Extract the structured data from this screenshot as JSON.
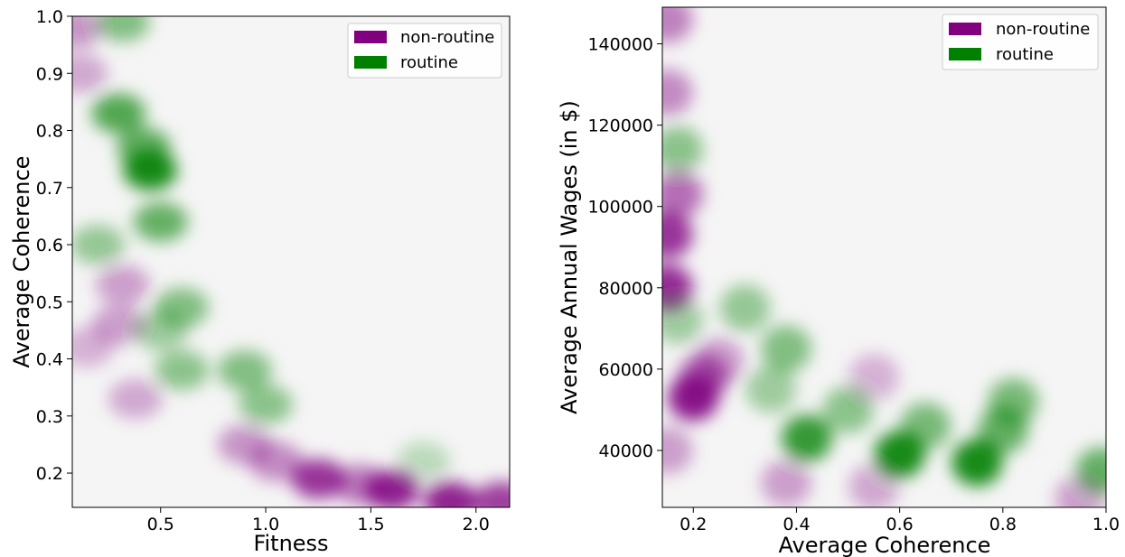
{
  "colors": {
    "background": "#f5f5f5",
    "non_routine": "#800080",
    "routine": "#008000"
  },
  "chart_data": [
    {
      "type": "heatmap",
      "subtype": "kde-density",
      "title": "",
      "xlabel": "Fitness",
      "ylabel": "Average Coherence",
      "xlim": [
        0.08,
        2.16
      ],
      "ylim": [
        0.14,
        1.0
      ],
      "xticks": [
        0.5,
        1.0,
        1.5,
        2.0
      ],
      "xtick_labels": [
        "0.5",
        "1.0",
        "1.5",
        "2.0"
      ],
      "yticks": [
        0.2,
        0.3,
        0.4,
        0.5,
        0.6,
        0.7,
        0.8,
        0.9,
        1.0
      ],
      "ytick_labels": [
        "0.2",
        "0.3",
        "0.4",
        "0.5",
        "0.6",
        "0.7",
        "0.8",
        "0.9",
        "1.0"
      ],
      "grid": false,
      "legend_position": "top-right",
      "legend": [
        {
          "label": "non-routine",
          "color": "#800080"
        },
        {
          "label": "routine",
          "color": "#008000"
        }
      ],
      "series": [
        {
          "name": "non-routine",
          "color": "#800080",
          "peaks": [
            {
              "x": 0.1,
              "y": 0.98,
              "density": 0.35
            },
            {
              "x": 0.12,
              "y": 0.9,
              "density": 0.25
            },
            {
              "x": 0.32,
              "y": 0.53,
              "density": 0.3
            },
            {
              "x": 0.3,
              "y": 0.46,
              "density": 0.3
            },
            {
              "x": 0.15,
              "y": 0.42,
              "density": 0.2
            },
            {
              "x": 0.38,
              "y": 0.33,
              "density": 0.25
            },
            {
              "x": 0.9,
              "y": 0.25,
              "density": 0.35
            },
            {
              "x": 1.05,
              "y": 0.22,
              "density": 0.4
            },
            {
              "x": 1.25,
              "y": 0.19,
              "density": 0.85
            },
            {
              "x": 1.45,
              "y": 0.18,
              "density": 0.5
            },
            {
              "x": 1.6,
              "y": 0.17,
              "density": 0.95
            },
            {
              "x": 1.88,
              "y": 0.15,
              "density": 0.95
            },
            {
              "x": 2.12,
              "y": 0.15,
              "density": 0.8
            }
          ]
        },
        {
          "name": "routine",
          "color": "#008000",
          "peaks": [
            {
              "x": 0.32,
              "y": 0.99,
              "density": 0.45
            },
            {
              "x": 0.3,
              "y": 0.83,
              "density": 0.7
            },
            {
              "x": 0.42,
              "y": 0.77,
              "density": 0.65
            },
            {
              "x": 0.45,
              "y": 0.73,
              "density": 1.0
            },
            {
              "x": 0.5,
              "y": 0.64,
              "density": 0.6
            },
            {
              "x": 0.2,
              "y": 0.6,
              "density": 0.35
            },
            {
              "x": 0.6,
              "y": 0.49,
              "density": 0.45
            },
            {
              "x": 0.5,
              "y": 0.45,
              "density": 0.3
            },
            {
              "x": 0.6,
              "y": 0.38,
              "density": 0.4
            },
            {
              "x": 0.9,
              "y": 0.38,
              "density": 0.45
            },
            {
              "x": 1.0,
              "y": 0.32,
              "density": 0.4
            },
            {
              "x": 1.75,
              "y": 0.22,
              "density": 0.15
            }
          ]
        }
      ]
    },
    {
      "type": "heatmap",
      "subtype": "kde-density",
      "title": "",
      "xlabel": "Average Coherence",
      "ylabel": "Average Annual Wages (in $)",
      "xlim": [
        0.14,
        1.0
      ],
      "ylim": [
        26000,
        149000
      ],
      "xticks": [
        0.2,
        0.4,
        0.6,
        0.8,
        1.0
      ],
      "xtick_labels": [
        "0.2",
        "0.4",
        "0.6",
        "0.8",
        "1.0"
      ],
      "yticks": [
        40000,
        60000,
        80000,
        100000,
        120000,
        140000
      ],
      "ytick_labels": [
        "40000",
        "60000",
        "80000",
        "100000",
        "120000",
        "140000"
      ],
      "grid": false,
      "legend_position": "top-right",
      "legend": [
        {
          "label": "non-routine",
          "color": "#800080"
        },
        {
          "label": "routine",
          "color": "#008000"
        }
      ],
      "series": [
        {
          "name": "non-routine",
          "color": "#800080",
          "peaks": [
            {
              "x": 0.15,
              "y": 146000,
              "density": 0.45
            },
            {
              "x": 0.15,
              "y": 128000,
              "density": 0.4
            },
            {
              "x": 0.17,
              "y": 103000,
              "density": 0.55
            },
            {
              "x": 0.15,
              "y": 93000,
              "density": 0.85
            },
            {
              "x": 0.15,
              "y": 80000,
              "density": 0.9
            },
            {
              "x": 0.2,
              "y": 53000,
              "density": 1.0
            },
            {
              "x": 0.22,
              "y": 58000,
              "density": 0.6
            },
            {
              "x": 0.25,
              "y": 62000,
              "density": 0.3
            },
            {
              "x": 0.15,
              "y": 40000,
              "density": 0.3
            },
            {
              "x": 0.38,
              "y": 32000,
              "density": 0.3
            },
            {
              "x": 0.55,
              "y": 58000,
              "density": 0.2
            },
            {
              "x": 0.55,
              "y": 31000,
              "density": 0.25
            },
            {
              "x": 0.95,
              "y": 28000,
              "density": 0.3
            }
          ]
        },
        {
          "name": "routine",
          "color": "#008000",
          "peaks": [
            {
              "x": 0.17,
              "y": 114000,
              "density": 0.4
            },
            {
              "x": 0.17,
              "y": 72000,
              "density": 0.3
            },
            {
              "x": 0.3,
              "y": 75000,
              "density": 0.35
            },
            {
              "x": 0.38,
              "y": 65000,
              "density": 0.45
            },
            {
              "x": 0.35,
              "y": 55000,
              "density": 0.3
            },
            {
              "x": 0.42,
              "y": 43000,
              "density": 0.85
            },
            {
              "x": 0.5,
              "y": 50000,
              "density": 0.4
            },
            {
              "x": 0.6,
              "y": 39000,
              "density": 1.0
            },
            {
              "x": 0.65,
              "y": 46000,
              "density": 0.5
            },
            {
              "x": 0.75,
              "y": 37000,
              "density": 1.0
            },
            {
              "x": 0.8,
              "y": 45000,
              "density": 0.6
            },
            {
              "x": 0.82,
              "y": 52000,
              "density": 0.5
            },
            {
              "x": 0.99,
              "y": 35000,
              "density": 0.6
            }
          ]
        }
      ]
    }
  ]
}
